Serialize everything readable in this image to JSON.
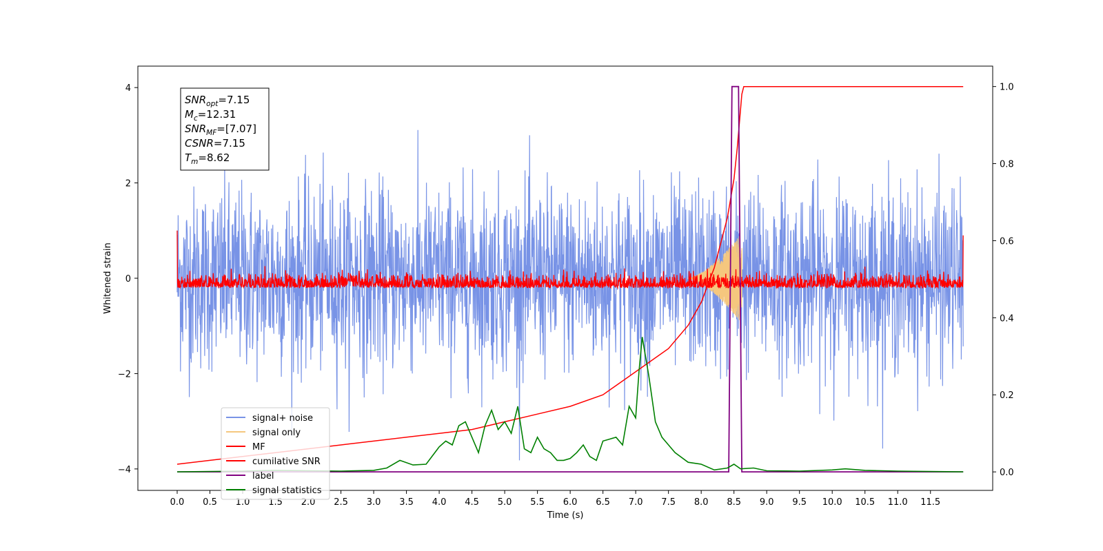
{
  "chart_data": {
    "type": "line",
    "xlabel": "Time (s)",
    "ylabel": "Whitened strain",
    "xlim": [
      -0.6,
      12.45
    ],
    "ylim": [
      -4.45,
      4.45
    ],
    "ylim_right": [
      -0.048,
      1.053
    ],
    "x_ticks": [
      0.0,
      0.5,
      1.0,
      1.5,
      2.0,
      2.5,
      3.0,
      3.5,
      4.0,
      4.5,
      5.0,
      5.5,
      6.0,
      6.5,
      7.0,
      7.5,
      8.0,
      8.5,
      9.0,
      9.5,
      10.0,
      10.5,
      11.0,
      11.5
    ],
    "x_tick_labels": [
      "0.0",
      "0.5",
      "1.0",
      "1.5",
      "2.0",
      "2.5",
      "3.0",
      "3.5",
      "4.0",
      "4.5",
      "5.0",
      "5.5",
      "6.0",
      "6.5",
      "7.0",
      "7.5",
      "8.0",
      "8.5",
      "9.0",
      "9.5",
      "10.0",
      "10.5",
      "11.0",
      "11.5"
    ],
    "y_ticks": [
      -4,
      -2,
      0,
      2,
      4
    ],
    "y_tick_labels": [
      "−4",
      "−2",
      "0",
      "2",
      "4"
    ],
    "y_right_ticks": [
      0.0,
      0.2,
      0.4,
      0.6,
      0.8,
      1.0
    ],
    "y_right_tick_labels": [
      "0.0",
      "0.2",
      "0.4",
      "0.6",
      "0.8",
      "1.0"
    ],
    "grid": false,
    "legend_position": "lower-left",
    "annotation": {
      "lines": [
        {
          "sym": "SNR",
          "sub": "opt",
          "val": "=7.15"
        },
        {
          "sym": "M",
          "sub": "c",
          "val": "=12.31"
        },
        {
          "sym": "SNR",
          "sub": "MF",
          "val": "=[7.07]"
        },
        {
          "sym": "CSNR",
          "sub": "",
          "val": "=7.15"
        },
        {
          "sym": "T",
          "sub": "m",
          "val": "=8.62"
        }
      ]
    },
    "series": [
      {
        "name": "signal+ noise",
        "color": "#7893e6",
        "axis": "left",
        "description_envelope": {
          "x_range": [
            0.0,
            12.0
          ],
          "typical_amplitude": 2.0,
          "max": 4.05,
          "min": -4.1
        }
      },
      {
        "name": "signal only",
        "color": "#f5c77e",
        "axis": "left",
        "chirp": {
          "start": 7.8,
          "peak_time": 8.62,
          "peak_amplitude": 0.95
        }
      },
      {
        "name": "MF",
        "color": "#ff0000",
        "axis": "left",
        "description_envelope": {
          "x_range": [
            0.0,
            12.0
          ],
          "band_min": -0.2,
          "band_max": 0.5,
          "edge_values": [
            1.0,
            0.9
          ]
        }
      },
      {
        "name": "cumilative SNR",
        "color": "#ff0000",
        "axis": "right",
        "x": [
          0.0,
          0.5,
          1.0,
          1.5,
          2.0,
          2.5,
          3.0,
          3.5,
          4.0,
          4.5,
          5.0,
          5.5,
          6.0,
          6.5,
          7.0,
          7.5,
          7.8,
          8.0,
          8.2,
          8.4,
          8.5,
          8.55,
          8.6,
          8.62,
          8.65,
          12.0
        ],
        "y": [
          0.02,
          0.03,
          0.04,
          0.05,
          0.06,
          0.07,
          0.08,
          0.09,
          0.1,
          0.11,
          0.13,
          0.15,
          0.17,
          0.2,
          0.26,
          0.32,
          0.38,
          0.44,
          0.53,
          0.66,
          0.76,
          0.84,
          0.94,
          0.98,
          1.0,
          1.0
        ]
      },
      {
        "name": "label",
        "color": "#800080",
        "axis": "right",
        "x": [
          0.0,
          8.42,
          8.47,
          8.57,
          8.62,
          12.0
        ],
        "y": [
          0.0,
          0.0,
          1.0,
          1.0,
          0.0,
          0.0
        ]
      },
      {
        "name": "signal statistics",
        "color": "#008000",
        "axis": "right",
        "x": [
          0.0,
          1.0,
          1.5,
          2.0,
          2.5,
          3.0,
          3.2,
          3.4,
          3.6,
          3.8,
          4.0,
          4.1,
          4.2,
          4.3,
          4.4,
          4.5,
          4.6,
          4.7,
          4.8,
          4.9,
          5.0,
          5.1,
          5.2,
          5.3,
          5.4,
          5.5,
          5.6,
          5.7,
          5.8,
          5.9,
          6.0,
          6.1,
          6.2,
          6.3,
          6.4,
          6.5,
          6.6,
          6.7,
          6.8,
          6.9,
          7.0,
          7.05,
          7.1,
          7.2,
          7.3,
          7.4,
          7.5,
          7.6,
          7.8,
          8.0,
          8.2,
          8.4,
          8.5,
          8.6,
          8.8,
          9.0,
          9.5,
          10.0,
          10.2,
          10.5,
          11.0,
          11.5,
          12.0
        ],
        "y": [
          0.0,
          0.002,
          0.004,
          0.003,
          0.002,
          0.004,
          0.01,
          0.03,
          0.018,
          0.02,
          0.065,
          0.08,
          0.07,
          0.12,
          0.13,
          0.09,
          0.05,
          0.12,
          0.16,
          0.11,
          0.13,
          0.1,
          0.17,
          0.06,
          0.05,
          0.09,
          0.06,
          0.05,
          0.03,
          0.03,
          0.035,
          0.05,
          0.07,
          0.04,
          0.03,
          0.08,
          0.085,
          0.09,
          0.07,
          0.17,
          0.14,
          0.26,
          0.35,
          0.25,
          0.13,
          0.09,
          0.07,
          0.05,
          0.025,
          0.02,
          0.005,
          0.01,
          0.02,
          0.008,
          0.01,
          0.003,
          0.002,
          0.005,
          0.008,
          0.004,
          0.002,
          0.001,
          0.0
        ]
      }
    ]
  }
}
